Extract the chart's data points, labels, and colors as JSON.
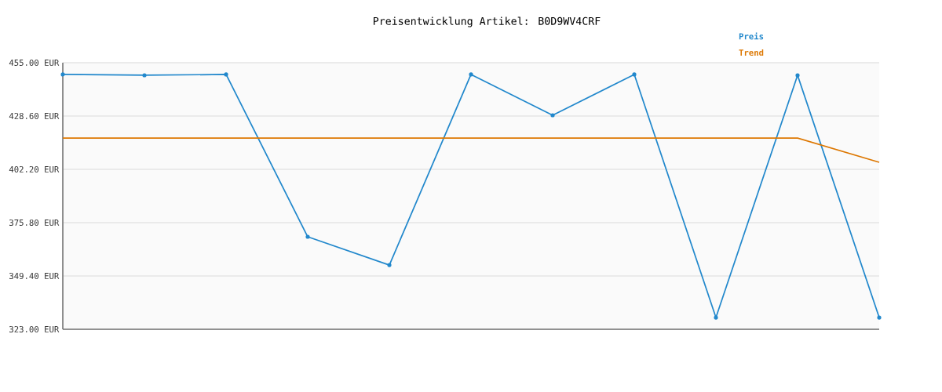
{
  "chart_data": {
    "type": "line",
    "title": "Preisentwicklung Artikel: B0D9WV4CRF",
    "categories": [
      null,
      null,
      null,
      null,
      null,
      null,
      null,
      null,
      null,
      null,
      null
    ],
    "series": [
      {
        "name": "Preis",
        "color": "#2288cc",
        "marker": "circle",
        "values": [
          449.2,
          448.8,
          449.2,
          368.8,
          354.8,
          449.2,
          429.0,
          449.2,
          328.8,
          448.8,
          328.8
        ]
      },
      {
        "name": "Trend",
        "color": "#dd7700",
        "marker": "none",
        "values": [
          417.7,
          417.7,
          417.7,
          417.7,
          417.7,
          417.7,
          417.7,
          417.7,
          417.7,
          417.7,
          405.7
        ]
      }
    ],
    "ylim": [
      323,
      455
    ],
    "yticks": [
      {
        "value": 323,
        "label": "323.00 EUR"
      },
      {
        "value": 349.4,
        "label": "349.40 EUR"
      },
      {
        "value": 375.8,
        "label": "375.80 EUR"
      },
      {
        "value": 402.2,
        "label": "402.20 EUR"
      },
      {
        "value": 428.6,
        "label": "428.60 EUR"
      },
      {
        "value": 455,
        "label": "455.00 EUR"
      }
    ],
    "grid": "y",
    "legend": "top right",
    "line_style": "solid"
  }
}
